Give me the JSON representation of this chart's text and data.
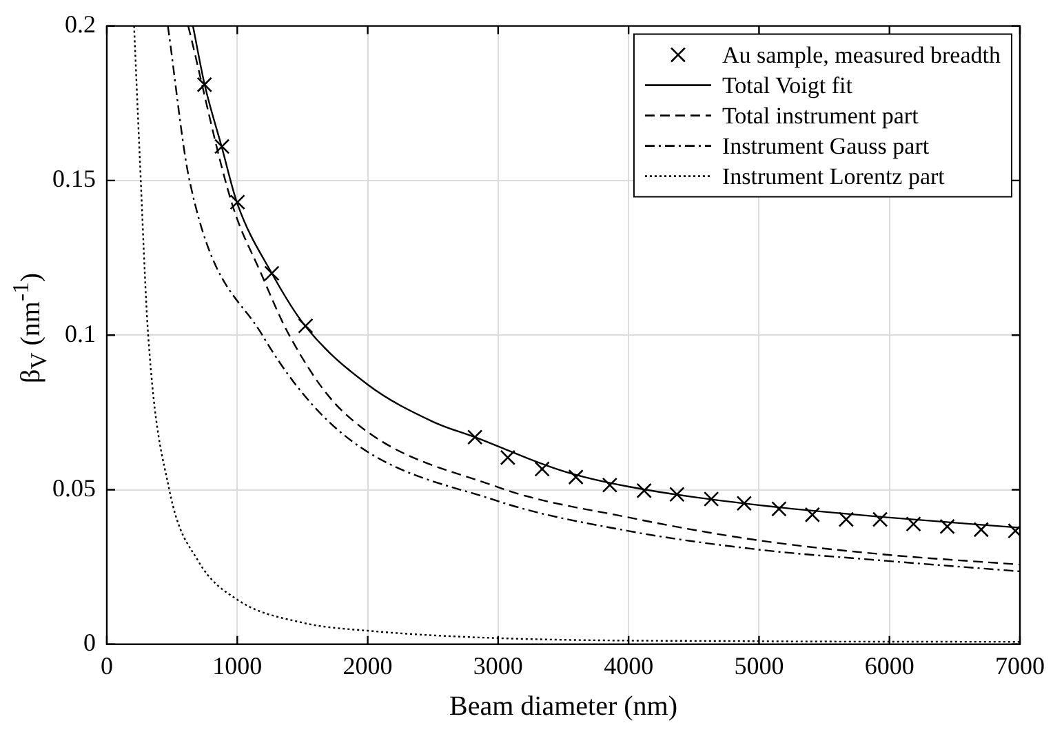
{
  "chart_data": {
    "type": "line",
    "xlabel": "Beam diameter (nm)",
    "ylabel": "β$_{V}$ (nm$^{-1}$)",
    "xlim": [
      0,
      7000
    ],
    "xticks": [
      0,
      1000,
      2000,
      3000,
      4000,
      5000,
      6000,
      7000
    ],
    "ylim": [
      0,
      0.2
    ],
    "yticks": [
      0,
      0.05,
      0.1,
      0.15,
      0.2
    ],
    "grid": true,
    "legend": "top right",
    "series": [
      {
        "name": "Au sample, measured breadth",
        "type": "scatter",
        "marker": "cross",
        "color": "#000000",
        "x": [
          749,
          883,
          1002,
          1265,
          1524,
          2822,
          3074,
          3337,
          3596,
          3856,
          4119,
          4371,
          4634,
          4886,
          5153,
          5409,
          5668,
          5928,
          6184,
          6443,
          6703,
          6965
        ],
        "values": [
          0.181,
          0.161,
          0.143,
          0.12,
          0.103,
          0.067,
          0.0604,
          0.0567,
          0.0541,
          0.0515,
          0.0497,
          0.0485,
          0.047,
          0.0456,
          0.0438,
          0.0419,
          0.0404,
          0.0404,
          0.0389,
          0.0381,
          0.0371,
          0.0367
        ]
      },
      {
        "name": "Total Voigt fit",
        "line_style": "solid",
        "color": "#000000",
        "x": [
          660,
          750,
          880,
          1000,
          1265,
          1520,
          2000,
          2500,
          2820,
          3500,
          4000,
          5000,
          6000,
          7000
        ],
        "values": [
          0.2,
          0.181,
          0.161,
          0.1426,
          0.12,
          0.103,
          0.084,
          0.072,
          0.067,
          0.056,
          0.051,
          0.045,
          0.041,
          0.0377
        ]
      },
      {
        "name": "Total instrument part",
        "line_style": "dashed",
        "color": "#000000",
        "x": [
          624,
          959,
          1182,
          1398,
          1795,
          3000,
          3993,
          4984,
          5975,
          7000
        ],
        "values": [
          0.2,
          0.1426,
          0.12,
          0.1,
          0.0759,
          0.0508,
          0.0411,
          0.0337,
          0.029,
          0.0258
        ]
      },
      {
        "name": "Instrument Gauss part",
        "line_style": "dashdot",
        "color": "#000000",
        "x": [
          468,
          634,
          1192,
          1795,
          3000,
          3993,
          4984,
          5975,
          7000
        ],
        "values": [
          0.2,
          0.15,
          0.1,
          0.0685,
          0.0463,
          0.0367,
          0.0307,
          0.027,
          0.0236
        ]
      },
      {
        "name": "Instrument Lorentz part",
        "line_style": "dotted",
        "color": "#000000",
        "x": [
          209,
          250,
          317,
          479,
          700,
          1002,
          1500,
          2000,
          3000,
          5000,
          7000
        ],
        "values": [
          0.2,
          0.16,
          0.1,
          0.05,
          0.027,
          0.0144,
          0.007,
          0.0044,
          0.002,
          0.001,
          0.0008
        ]
      }
    ]
  }
}
